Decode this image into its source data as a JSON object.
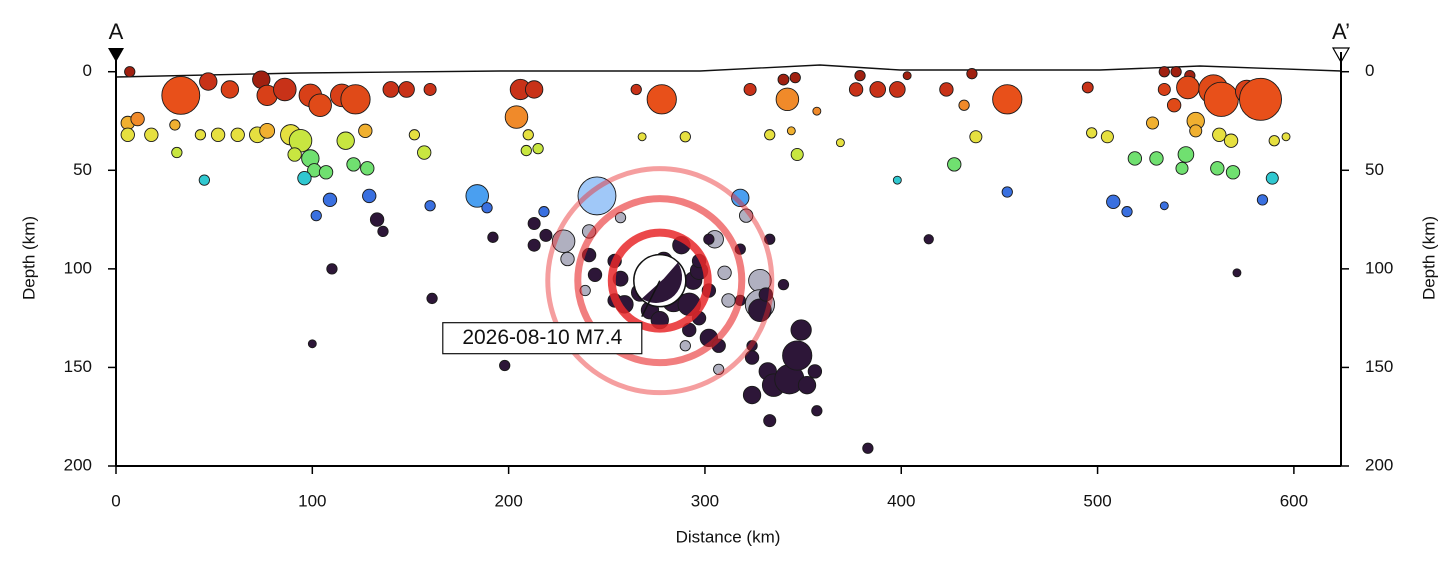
{
  "chart_data": {
    "type": "scatter",
    "xlabel": "Distance (km)",
    "ylabel": "Depth (km)",
    "section_labels": [
      "A",
      "A’"
    ],
    "xlim": [
      0,
      624
    ],
    "ylim": [
      200,
      -10
    ],
    "xticks": [
      0,
      100,
      200,
      300,
      400,
      500,
      600
    ],
    "yticks": [
      0,
      50,
      100,
      150,
      200
    ],
    "mainshock": {
      "x": 277,
      "y": 106,
      "label": "2026-08-10 M7.4",
      "color": "#e8282a"
    },
    "x": [
      228,
      230,
      241,
      257,
      305,
      310,
      312,
      303,
      290,
      307,
      328,
      321,
      239,
      328,
      7,
      33,
      47,
      58,
      74,
      77,
      86,
      99,
      104,
      115,
      122,
      140,
      148,
      160,
      206,
      213,
      204,
      265,
      278,
      323,
      342,
      340,
      346,
      357,
      379,
      377,
      388,
      398,
      403,
      423,
      432,
      436,
      454,
      495,
      534,
      540,
      547,
      534,
      539,
      546,
      559,
      563,
      576,
      583,
      550,
      528,
      6,
      11,
      6,
      18,
      30,
      43,
      52,
      62,
      72,
      77,
      89,
      94,
      117,
      127,
      152,
      210,
      215,
      209,
      268,
      290,
      333,
      344,
      369,
      438,
      497,
      505,
      550,
      562,
      568,
      590,
      596,
      31,
      45,
      91,
      99,
      101,
      96,
      107,
      121,
      128,
      157,
      347,
      398,
      427,
      519,
      530,
      543,
      545,
      561,
      569,
      589,
      109,
      102,
      129,
      160,
      184,
      189,
      218,
      245,
      318,
      454,
      508,
      515,
      534,
      584,
      133,
      136,
      110,
      161,
      100,
      192,
      213,
      213,
      219,
      198,
      414,
      571,
      383,
      241,
      244,
      254,
      257,
      254,
      259,
      267,
      272,
      277,
      284,
      292,
      294,
      297,
      288,
      297,
      279,
      277,
      302,
      297,
      292,
      302,
      307,
      318,
      324,
      324,
      332,
      335,
      343,
      347,
      349,
      352,
      356,
      324,
      333,
      357,
      328,
      331,
      318,
      333,
      340,
      302
    ],
    "values": [
      86,
      95,
      81,
      74,
      85,
      102,
      116,
      136,
      139,
      151,
      106,
      73,
      111,
      118,
      0,
      12,
      5,
      9,
      4,
      12,
      9,
      12,
      17,
      12,
      14,
      9,
      9,
      9,
      9,
      9,
      23,
      9,
      14,
      9,
      14,
      4,
      3,
      20,
      2,
      9,
      9,
      9,
      2,
      9,
      17,
      1,
      14,
      8,
      0,
      0,
      2,
      9,
      17,
      8,
      9,
      14,
      10,
      14,
      25,
      26,
      26,
      24,
      32,
      32,
      27,
      32,
      32,
      32,
      32,
      30,
      32,
      35,
      35,
      30,
      32,
      32,
      39,
      40,
      33,
      33,
      32,
      30,
      36,
      33,
      31,
      33,
      30,
      32,
      35,
      35,
      33,
      41,
      55,
      42,
      44,
      50,
      54,
      51,
      47,
      49,
      41,
      42,
      55,
      47,
      44,
      44,
      49,
      42,
      49,
      51,
      54,
      65,
      73,
      63,
      68,
      63,
      69,
      71,
      63,
      64,
      61,
      66,
      71,
      68,
      65,
      75,
      81,
      100,
      115,
      138,
      84,
      77,
      88,
      83,
      149,
      85,
      102,
      191,
      93,
      103,
      96,
      105,
      116,
      118,
      112,
      121,
      126,
      116,
      118,
      106,
      101,
      88,
      96,
      96,
      108,
      111,
      125,
      131,
      135,
      139,
      116,
      139,
      145,
      152,
      159,
      156,
      144,
      131,
      159,
      152,
      164,
      177,
      172,
      121,
      113,
      90,
      85,
      108,
      85
    ],
    "sizes": [
      5,
      4,
      4,
      3.5,
      4.5,
      4,
      4,
      3.5,
      3.5,
      3.5,
      5,
      4,
      3.5,
      5.5,
      3.5,
      6,
      4.5,
      4.5,
      4.5,
      4.8,
      5,
      5,
      5,
      5,
      5.5,
      4.3,
      4.3,
      3.8,
      4.8,
      4.5,
      5,
      3.5,
      5.5,
      3.8,
      5,
      3.6,
      3.5,
      3,
      3.5,
      4,
      4.3,
      4.3,
      3,
      4,
      3.5,
      3.5,
      5.5,
      3.6,
      3.5,
      3.5,
      3.5,
      3.8,
      4,
      5,
      5.5,
      5.8,
      5,
      6.2,
      4.5,
      3.8,
      4,
      4,
      4,
      4,
      3.5,
      3.5,
      4,
      4,
      4.3,
      4.2,
      4.8,
      5,
      4.5,
      4,
      3.5,
      3.5,
      3.5,
      3.5,
      3,
      3.5,
      3.5,
      3,
      3,
      3.8,
      3.5,
      3.8,
      3.8,
      4,
      4,
      3.5,
      3,
      3.5,
      3.5,
      4,
      4.5,
      4,
      4,
      4,
      4,
      4,
      4,
      3.8,
      3,
      4,
      4,
      4,
      3.8,
      4.3,
      4,
      4,
      3.8,
      4,
      3.5,
      4,
      3.5,
      5,
      3.5,
      3.5,
      6,
      4.5,
      3.5,
      4,
      3.5,
      3,
      3.5,
      4,
      3.5,
      3.5,
      3.5,
      3,
      3.5,
      3.8,
      3.8,
      3.8,
      3.5,
      3.3,
      3,
      3.5,
      4,
      4,
      4,
      4.2,
      4,
      4.5,
      4.5,
      4.5,
      4.5,
      5,
      5,
      4.5,
      4.5,
      4.5,
      4,
      4.5,
      5.5,
      4,
      4,
      4,
      4.5,
      4,
      3.5,
      3.5,
      4,
      4.5,
      5,
      5.5,
      5.5,
      4.8,
      4.5,
      4,
      4.5,
      3.8,
      3.5,
      5,
      4,
      3.5,
      3.5,
      3.5,
      3.5
    ],
    "colors": [
      "#b0b0c0",
      "#b0b0c0",
      "#b0b0c0",
      "#b0b0c0",
      "#b0b0c0",
      "#b0b0c0",
      "#b0b0c0",
      "#b0b0c0",
      "#b0b0c0",
      "#b0b0c0",
      "#b0b0c0",
      "#b0b0c0",
      "#b0b0c0",
      "#b0b0c0",
      "#a02010",
      "#e8501a",
      "#c83218",
      "#d84018",
      "#a02010",
      "#d84018",
      "#c83218",
      "#d84018",
      "#e04a18",
      "#d84018",
      "#e04a18",
      "#c83218",
      "#c83218",
      "#c83218",
      "#c83218",
      "#c83218",
      "#f08a2a",
      "#c83218",
      "#e8501a",
      "#c83218",
      "#f08a2a",
      "#a02010",
      "#a02010",
      "#f08a2a",
      "#a02010",
      "#c83218",
      "#c83218",
      "#c83218",
      "#a02010",
      "#c83218",
      "#f08a2a",
      "#a02010",
      "#e8501a",
      "#c83218",
      "#a02010",
      "#a02010",
      "#a02010",
      "#d84018",
      "#e04a18",
      "#e04a18",
      "#e04a18",
      "#e8501a",
      "#d84018",
      "#e8501a",
      "#f0b030",
      "#f0b030",
      "#f0b030",
      "#f08a2a",
      "#e6e040",
      "#e6e040",
      "#f0b030",
      "#e6e040",
      "#e6e040",
      "#e6e040",
      "#e6e040",
      "#f0b030",
      "#e6e040",
      "#c8e640",
      "#c8e640",
      "#f0b030",
      "#e6e040",
      "#e6e040",
      "#c8e640",
      "#c8e640",
      "#e6e040",
      "#e6e040",
      "#e6e040",
      "#f0b030",
      "#e6e040",
      "#e6e040",
      "#e6e040",
      "#e6e040",
      "#f0b030",
      "#e6e040",
      "#e6e040",
      "#e6e040",
      "#e6e040",
      "#c8e640",
      "#30c8d0",
      "#c8e640",
      "#70e070",
      "#70e070",
      "#30c8d0",
      "#70e070",
      "#70e070",
      "#70e070",
      "#c8e640",
      "#c8e640",
      "#30c8d0",
      "#70e070",
      "#70e070",
      "#70e070",
      "#70e070",
      "#70e070",
      "#70e070",
      "#70e070",
      "#30c8d0",
      "#3a70e0",
      "#3a70e0",
      "#3a70e0",
      "#3a70e0",
      "#4a9ff0",
      "#3a70e0",
      "#3a70e0",
      "#a0c8f8",
      "#4a9ff0",
      "#3a70e0",
      "#3a70e0",
      "#3a70e0",
      "#3a70e0",
      "#3a70e0",
      "#2d1638",
      "#2d1638",
      "#2d1638",
      "#2d1638",
      "#2d1638",
      "#2d1638",
      "#2d1638",
      "#2d1638",
      "#2d1638",
      "#2d1638",
      "#2d1638",
      "#2d1638",
      "#2d1638",
      "#2d1638",
      "#2d1638",
      "#2d1638",
      "#2d1638",
      "#2d1638",
      "#2d1638",
      "#2d1638",
      "#2d1638",
      "#2d1638",
      "#2d1638",
      "#2d1638",
      "#2d1638",
      "#2d1638",
      "#2d1638",
      "#2d1638",
      "#2d1638",
      "#2d1638",
      "#2d1638",
      "#2d1638",
      "#2d1638",
      "#2d1638",
      "#2d1638",
      "#2d1638",
      "#2d1638",
      "#2d1638",
      "#2d1638",
      "#2d1638",
      "#2d1638",
      "#2d1638",
      "#2d1638",
      "#2d1638",
      "#2d1638",
      "#2d1638",
      "#2d1638",
      "#2d1638",
      "#2d1638",
      "#2d1638",
      "#2d1638",
      "#2d1638",
      "#2d1638",
      "#2d1638"
    ]
  }
}
